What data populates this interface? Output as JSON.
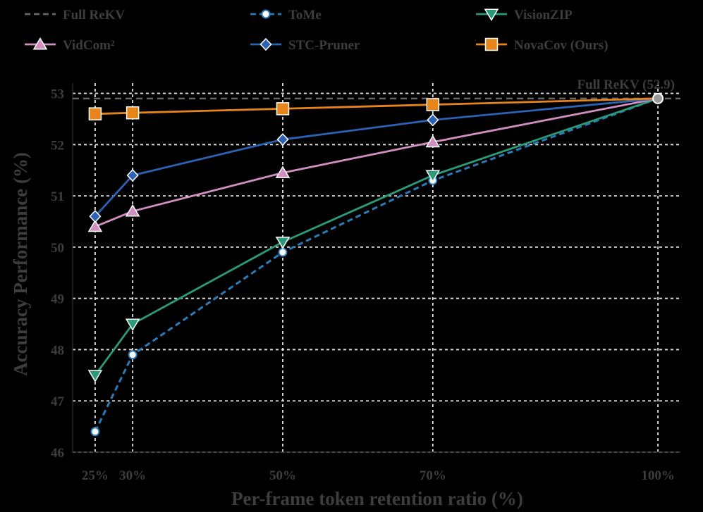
{
  "chart_data": {
    "type": "line",
    "xlabel": "Per-frame token retention ratio (%)",
    "ylabel": "Accuracy Performance (%)",
    "x_ticks": [
      25,
      30,
      50,
      70,
      100
    ],
    "x_tick_labels": [
      "25%",
      "30%",
      "50%",
      "70%",
      "100%"
    ],
    "y_ticks": [
      46,
      47,
      48,
      49,
      50,
      51,
      52,
      53
    ],
    "y_tick_labels": [
      "46",
      "47",
      "48",
      "49",
      "50",
      "51",
      "52",
      "53"
    ],
    "xlim": [
      22,
      103
    ],
    "ylim": [
      46,
      53.2
    ],
    "grid": true,
    "legend_position": "top",
    "reference_line": {
      "name": "Full ReKV",
      "value": 52.9,
      "label": "Full ReKV (52.9)",
      "color": "#666666"
    },
    "endpoint": {
      "x": 100,
      "y": 52.9
    },
    "series": [
      {
        "name": "ToMe",
        "color": "#2b7bb9",
        "marker": "circle",
        "dashed": true,
        "x": [
          25,
          30,
          50,
          70,
          100
        ],
        "y": [
          46.4,
          47.9,
          49.9,
          51.3,
          52.9
        ]
      },
      {
        "name": "VisionZIP",
        "color": "#2a9a78",
        "marker": "triangle-down",
        "dashed": false,
        "x": [
          25,
          30,
          50,
          70,
          100
        ],
        "y": [
          47.5,
          48.5,
          50.1,
          51.4,
          52.9
        ]
      },
      {
        "name": "VidCom²",
        "color": "#d08fc0",
        "marker": "triangle-up",
        "dashed": false,
        "x": [
          25,
          30,
          50,
          70,
          100
        ],
        "y": [
          50.4,
          50.7,
          51.45,
          52.05,
          52.9
        ]
      },
      {
        "name": "STC-Pruner",
        "color": "#2b62b4",
        "marker": "diamond",
        "dashed": false,
        "x": [
          25,
          30,
          50,
          70,
          100
        ],
        "y": [
          50.6,
          51.4,
          52.1,
          52.48,
          52.9
        ]
      },
      {
        "name": "NovaCov (Ours)",
        "color": "#e8851a",
        "marker": "square",
        "dashed": false,
        "x": [
          25,
          30,
          50,
          70,
          100
        ],
        "y": [
          52.6,
          52.62,
          52.7,
          52.78,
          52.9
        ]
      }
    ],
    "legend": [
      {
        "label": "Full ReKV",
        "color": "#666666",
        "marker": "none",
        "dashed": true
      },
      {
        "label": "ToMe",
        "color": "#2b7bb9",
        "marker": "circle",
        "dashed": true
      },
      {
        "label": "VisionZIP",
        "color": "#2a9a78",
        "marker": "triangle-down",
        "dashed": false
      },
      {
        "label": "VidCom²",
        "color": "#d08fc0",
        "marker": "triangle-up",
        "dashed": false
      },
      {
        "label": "STC-Pruner",
        "color": "#2b62b4",
        "marker": "diamond",
        "dashed": false
      },
      {
        "label": "NovaCov (Ours)",
        "color": "#e8851a",
        "marker": "square",
        "dashed": false
      }
    ]
  }
}
